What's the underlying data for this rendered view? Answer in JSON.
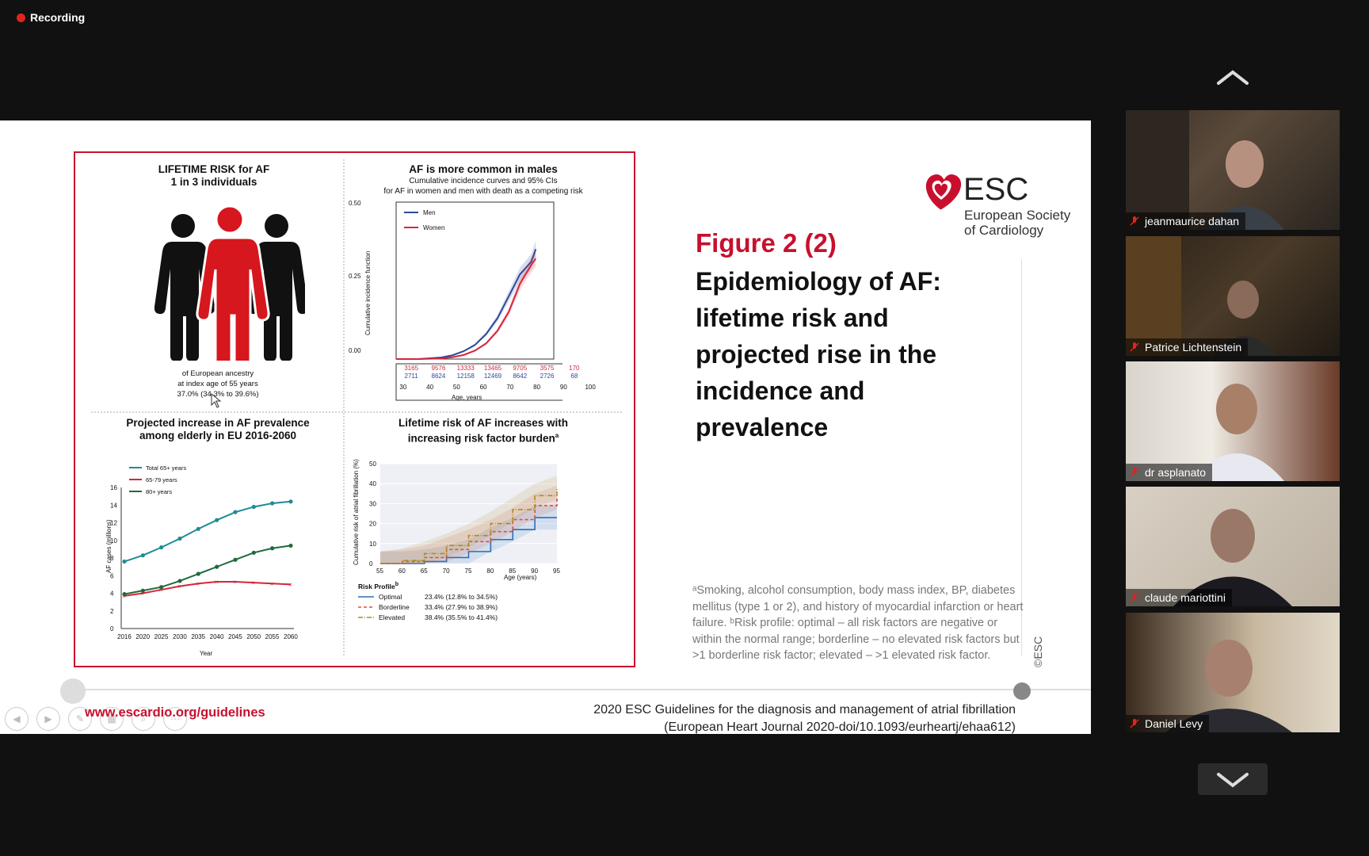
{
  "recording": {
    "label": "Recording"
  },
  "slide": {
    "panel1": {
      "title1": "LIFETIME RISK for AF",
      "title2": "1 in 3 individuals",
      "caption1": "of European ancestry",
      "caption2": "at index age of 55 years",
      "caption3": "37.0% (34.3% to 39.6%)"
    },
    "panel2": {
      "title": "AF is more common in males",
      "sub1": "Cumulative incidence curves and 95% CIs",
      "sub2": "for AF in women and men with death as a competing risk",
      "ylabel": "Cumulative incidence function",
      "yticks": [
        "0.50",
        "0.25",
        "0.00"
      ],
      "legend_men": "Men",
      "legend_women": "Women",
      "risk_men": [
        "3165",
        "9576",
        "13333",
        "13465",
        "9705",
        "3575",
        "170"
      ],
      "risk_women": [
        "2711",
        "8624",
        "12158",
        "12469",
        "8642",
        "2726",
        "68"
      ],
      "xticks": [
        "30",
        "40",
        "50",
        "60",
        "70",
        "80",
        "90",
        "100"
      ],
      "xlabel": "Age, years"
    },
    "panel3": {
      "title1": "Projected increase in AF prevalence",
      "title2": "among elderly in EU 2016-2060",
      "ylabel": "AF cases (millions)",
      "xlabel": "Year",
      "legend": [
        "Total 65+ years",
        "65-79 years",
        "80+ years"
      ]
    },
    "panel4": {
      "title1": "Lifetime risk of AF increases with",
      "title2": "increasing risk factor burden",
      "title_sup": "a",
      "ylabel": "Cumulative risk of atrial fibrillation (%)",
      "xlabel": "Age (years)",
      "risk_profile": "Risk Profile",
      "risk_profile_sup": "b",
      "rows": [
        {
          "name": "Optimal",
          "value": "23.4% (12.8% to 34.5%)"
        },
        {
          "name": "Borderline",
          "value": "33.4% (27.9% to 38.9%)"
        },
        {
          "name": "Elevated",
          "value": "38.4% (35.5% to 41.4%)"
        }
      ]
    },
    "esc": {
      "abbr": "ESC",
      "line1": "European Society",
      "line2": "of Cardiology"
    },
    "figure_number": "Figure 2 (2)",
    "figure_title": "Epidemiology of AF: lifetime risk and projected rise in the incidence and prevalence",
    "footnote": "ᵃSmoking, alcohol consumption, body mass index, BP, diabetes mellitus (type 1 or 2), and history of myocardial infarction or heart failure. ᵇRisk profile: optimal – all risk factors are negative or within the normal range; borderline – no elevated risk factors but >1 borderline risk factor; elevated – >1 elevated risk factor.",
    "copyright": "©ESC",
    "url": "www.escardio.org/guidelines",
    "citation_line1": "2020 ESC Guidelines for the diagnosis and management of atrial fibrillation",
    "citation_line2": "(European Heart Journal 2020-doi/10.1093/eurheartj/ehaa612)"
  },
  "chart_data": [
    {
      "type": "line",
      "title": "AF is more common in males",
      "xlabel": "Age, years",
      "ylabel": "Cumulative incidence function",
      "xlim": [
        30,
        100
      ],
      "ylim": [
        0,
        0.5
      ],
      "x": [
        30,
        40,
        50,
        55,
        60,
        65,
        70,
        75,
        80,
        85,
        90,
        92
      ],
      "series": [
        {
          "name": "Men",
          "color": "#2b4a9c",
          "values": [
            0,
            0,
            0.005,
            0.012,
            0.025,
            0.045,
            0.08,
            0.13,
            0.2,
            0.27,
            0.31,
            0.35
          ]
        },
        {
          "name": "Women",
          "color": "#d6253a",
          "values": [
            0,
            0,
            0.002,
            0.006,
            0.013,
            0.027,
            0.05,
            0.09,
            0.15,
            0.24,
            0.3,
            0.32
          ]
        }
      ]
    },
    {
      "type": "line",
      "title": "Projected increase in AF prevalence among elderly in EU 2016-2060",
      "xlabel": "Year",
      "ylabel": "AF cases (millions)",
      "ylim": [
        0,
        16
      ],
      "x": [
        2016,
        2020,
        2025,
        2030,
        2035,
        2040,
        2045,
        2050,
        2055,
        2060
      ],
      "series": [
        {
          "name": "Total 65+ years",
          "color": "#1e8c94",
          "values": [
            7.6,
            8.3,
            9.2,
            10.2,
            11.3,
            12.3,
            13.2,
            13.8,
            14.2,
            14.4
          ]
        },
        {
          "name": "65-79 years",
          "color": "#d6253a",
          "values": [
            3.7,
            4.0,
            4.4,
            4.8,
            5.1,
            5.3,
            5.3,
            5.2,
            5.1,
            5.0
          ]
        },
        {
          "name": "80+ years",
          "color": "#1f6b3a",
          "values": [
            3.9,
            4.3,
            4.7,
            5.4,
            6.2,
            7.0,
            7.8,
            8.6,
            9.1,
            9.4
          ]
        }
      ]
    },
    {
      "type": "line",
      "title": "Lifetime risk of AF increases with increasing risk factor burden",
      "xlabel": "Age (years)",
      "ylabel": "Cumulative risk of atrial fibrillation (%)",
      "xlim": [
        55,
        95
      ],
      "ylim": [
        0,
        50
      ],
      "x": [
        55,
        60,
        65,
        70,
        75,
        80,
        85,
        90,
        95
      ],
      "series": [
        {
          "name": "Optimal",
          "color": "#2e6fb5",
          "values": [
            0,
            0,
            1,
            3,
            6,
            12,
            17,
            23,
            23
          ]
        },
        {
          "name": "Borderline",
          "color": "#d6533a",
          "values": [
            0,
            1,
            3,
            7,
            11,
            16,
            22,
            29,
            33
          ]
        },
        {
          "name": "Elevated",
          "color": "#b08a1e",
          "values": [
            0,
            1.5,
            5,
            9,
            14,
            20,
            27,
            34,
            38
          ]
        }
      ]
    }
  ],
  "participants": [
    {
      "name": "jeanmaurice dahan"
    },
    {
      "name": "Patrice Lichtenstein"
    },
    {
      "name": "dr asplanato"
    },
    {
      "name": "claude mariottini"
    },
    {
      "name": "Daniel Levy"
    }
  ]
}
